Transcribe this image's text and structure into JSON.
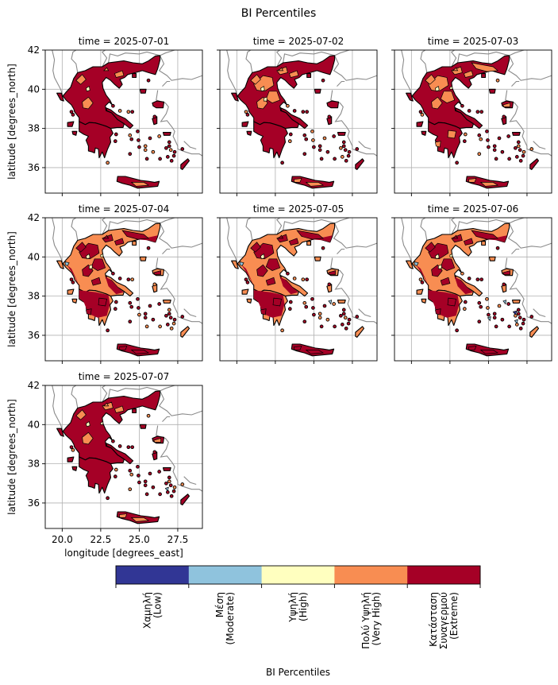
{
  "figure": {
    "title": "BI Percentiles"
  },
  "chart_data": {
    "type": "map",
    "variable": "BI Percentiles",
    "xlabel": "longitude [degrees_east]",
    "ylabel": "latitude [degrees_north]",
    "xlim": [
      18.9,
      29.1
    ],
    "ylim": [
      34.7,
      42.0
    ],
    "xticks": [
      20.0,
      22.5,
      25.0,
      27.5
    ],
    "xtick_labels": [
      "20.0",
      "22.5",
      "25.0",
      "27.5"
    ],
    "yticks": [
      36,
      38,
      40,
      42
    ],
    "ytick_labels": [
      "36",
      "38",
      "40",
      "42"
    ],
    "grid": true,
    "panels": [
      {
        "title": "time = 2025-07-01",
        "dominant_class": "Extreme"
      },
      {
        "title": "time = 2025-07-02",
        "dominant_class": "Extreme"
      },
      {
        "title": "time = 2025-07-03",
        "dominant_class": "Extreme"
      },
      {
        "title": "time = 2025-07-04",
        "dominant_class": "Very High"
      },
      {
        "title": "time = 2025-07-05",
        "dominant_class": "Very High"
      },
      {
        "title": "time = 2025-07-06",
        "dominant_class": "Very High"
      },
      {
        "title": "time = 2025-07-07",
        "dominant_class": "Extreme"
      }
    ],
    "colorbar": {
      "label": "BI Percentiles",
      "classes": [
        {
          "label_lines": [
            "Χαμηλή",
            "(Low)"
          ],
          "color": "#313695"
        },
        {
          "label_lines": [
            "Μέση",
            "(Moderate)"
          ],
          "color": "#8fc3dd"
        },
        {
          "label_lines": [
            "Υψηλή",
            "(High)"
          ],
          "color": "#ffffbf"
        },
        {
          "label_lines": [
            "Πολύ Υψηλή",
            "(Very High)"
          ],
          "color": "#f88d52"
        },
        {
          "label_lines": [
            "Κατάσταση",
            "Συναγερμού",
            "(Extreme)"
          ],
          "color": "#a50026"
        }
      ]
    }
  }
}
